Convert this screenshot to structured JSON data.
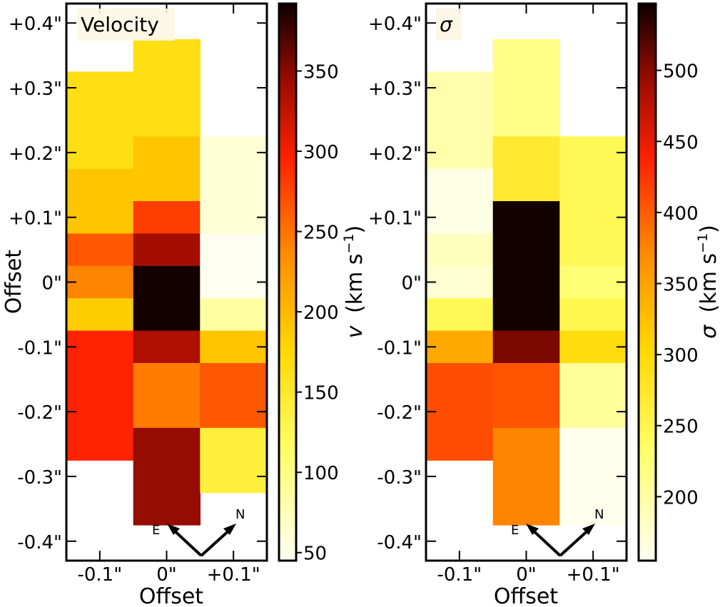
{
  "chart_data": [
    {
      "type": "heatmap",
      "title": "Velocity",
      "xlabel": "Offset",
      "ylabel": "Offset",
      "x_ticks": [
        "-0.1\"",
        "0\"",
        "+0.1\""
      ],
      "y_ticks": [
        "+0.4\"",
        "+0.3\"",
        "+0.2\"",
        "+0.1\"",
        "0\"",
        "-0.1\"",
        "-0.2\"",
        "-0.3\"",
        "-0.4\""
      ],
      "colorbar": {
        "label_symbol": "v",
        "label_units": "(km s",
        "label_exp": "−1",
        "label_close": ")",
        "range": [
          45,
          392
        ],
        "ticks": [
          50,
          100,
          150,
          200,
          250,
          300,
          350
        ]
      },
      "compass": {
        "east": "E",
        "north": "N"
      },
      "pixels": [
        {
          "col": -0.1,
          "y_top": 0.325,
          "y_bottom": 0.175,
          "value": 165
        },
        {
          "col": -0.1,
          "y_top": 0.175,
          "y_bottom": 0.075,
          "value": 190
        },
        {
          "col": -0.1,
          "y_top": 0.075,
          "y_bottom": 0.025,
          "value": 265
        },
        {
          "col": -0.1,
          "y_top": 0.025,
          "y_bottom": -0.025,
          "value": 240
        },
        {
          "col": -0.1,
          "y_top": -0.025,
          "y_bottom": -0.075,
          "value": 185
        },
        {
          "col": -0.1,
          "y_top": -0.075,
          "y_bottom": -0.275,
          "value": 295
        },
        {
          "col": 0.0,
          "y_top": 0.375,
          "y_bottom": 0.225,
          "value": 165
        },
        {
          "col": 0.0,
          "y_top": 0.225,
          "y_bottom": 0.125,
          "value": 190
        },
        {
          "col": 0.0,
          "y_top": 0.125,
          "y_bottom": 0.075,
          "value": 280
        },
        {
          "col": 0.0,
          "y_top": 0.075,
          "y_bottom": 0.025,
          "value": 340
        },
        {
          "col": 0.0,
          "y_top": 0.025,
          "y_bottom": -0.075,
          "value": 390
        },
        {
          "col": 0.0,
          "y_top": -0.075,
          "y_bottom": -0.125,
          "value": 335
        },
        {
          "col": 0.0,
          "y_top": -0.125,
          "y_bottom": -0.225,
          "value": 245
        },
        {
          "col": 0.0,
          "y_top": -0.225,
          "y_bottom": -0.375,
          "value": 345
        },
        {
          "col": 0.1,
          "y_top": 0.225,
          "y_bottom": 0.075,
          "value": 60
        },
        {
          "col": 0.1,
          "y_top": 0.075,
          "y_bottom": -0.025,
          "value": 47
        },
        {
          "col": 0.1,
          "y_top": -0.025,
          "y_bottom": -0.075,
          "value": 85
        },
        {
          "col": 0.1,
          "y_top": -0.075,
          "y_bottom": -0.125,
          "value": 190
        },
        {
          "col": 0.1,
          "y_top": -0.125,
          "y_bottom": -0.225,
          "value": 265
        },
        {
          "col": 0.1,
          "y_top": -0.225,
          "y_bottom": -0.325,
          "value": 140
        }
      ]
    },
    {
      "type": "heatmap",
      "title": "σ",
      "xlabel": "Offset",
      "ylabel": "",
      "x_ticks": [
        "-0.1\"",
        "0\"",
        "+0.1\""
      ],
      "y_ticks": [
        "+0.4\"",
        "+0.3\"",
        "+0.2\"",
        "+0.1\"",
        "0\"",
        "-0.1\"",
        "-0.2\"",
        "-0.3\"",
        "-0.4\""
      ],
      "colorbar": {
        "label_symbol": "σ",
        "label_units": "(km s",
        "label_exp": "−1",
        "label_close": ")",
        "range": [
          155,
          547
        ],
        "ticks": [
          200,
          250,
          300,
          350,
          400,
          450,
          500
        ]
      },
      "compass": {
        "east": "E",
        "north": "N"
      },
      "pixels": [
        {
          "col": -0.1,
          "y_top": 0.325,
          "y_bottom": 0.175,
          "value": 195
        },
        {
          "col": -0.1,
          "y_top": 0.175,
          "y_bottom": 0.075,
          "value": 163
        },
        {
          "col": -0.1,
          "y_top": 0.075,
          "y_bottom": 0.025,
          "value": 185
        },
        {
          "col": -0.1,
          "y_top": 0.025,
          "y_bottom": -0.025,
          "value": 175
        },
        {
          "col": -0.1,
          "y_top": -0.025,
          "y_bottom": -0.075,
          "value": 245
        },
        {
          "col": -0.1,
          "y_top": -0.075,
          "y_bottom": -0.125,
          "value": 345
        },
        {
          "col": -0.1,
          "y_top": -0.125,
          "y_bottom": -0.275,
          "value": 410
        },
        {
          "col": 0.0,
          "y_top": 0.375,
          "y_bottom": 0.225,
          "value": 215
        },
        {
          "col": 0.0,
          "y_top": 0.225,
          "y_bottom": 0.125,
          "value": 270
        },
        {
          "col": 0.0,
          "y_top": 0.125,
          "y_bottom": -0.075,
          "value": 545
        },
        {
          "col": 0.0,
          "y_top": -0.075,
          "y_bottom": -0.125,
          "value": 505
        },
        {
          "col": 0.0,
          "y_top": -0.125,
          "y_bottom": -0.225,
          "value": 405
        },
        {
          "col": 0.0,
          "y_top": -0.225,
          "y_bottom": -0.375,
          "value": 375
        },
        {
          "col": 0.1,
          "y_top": 0.225,
          "y_bottom": 0.025,
          "value": 245
        },
        {
          "col": 0.1,
          "y_top": 0.025,
          "y_bottom": -0.025,
          "value": 225
        },
        {
          "col": 0.1,
          "y_top": -0.025,
          "y_bottom": -0.075,
          "value": 250
        },
        {
          "col": 0.1,
          "y_top": -0.075,
          "y_bottom": -0.125,
          "value": 295
        },
        {
          "col": 0.1,
          "y_top": -0.125,
          "y_bottom": -0.225,
          "value": 205
        },
        {
          "col": 0.1,
          "y_top": -0.225,
          "y_bottom": -0.375,
          "value": 160
        }
      ]
    }
  ]
}
